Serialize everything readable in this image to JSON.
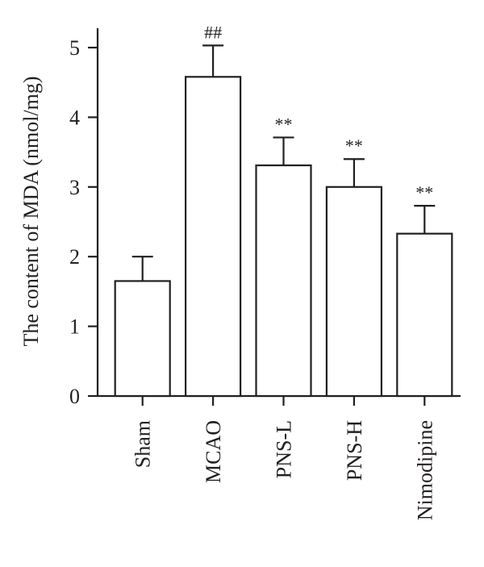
{
  "chart_data": {
    "type": "bar",
    "categories": [
      "Sham",
      "MCAO",
      "PNS-L",
      "PNS-H",
      "Nimodipine"
    ],
    "values": [
      1.65,
      4.58,
      3.31,
      3.0,
      2.33
    ],
    "errors": [
      0.35,
      0.45,
      0.4,
      0.4,
      0.4
    ],
    "significance": [
      "",
      "##",
      "**",
      "**",
      "**"
    ],
    "title": "",
    "xlabel": "",
    "ylabel": "The content of MDA (nmol/mg)",
    "ylim": [
      0,
      5
    ],
    "yticks": [
      0,
      1,
      2,
      3,
      4,
      5
    ],
    "grid": false,
    "bar_fill": "#ffffff",
    "line_color": "#231f20"
  }
}
